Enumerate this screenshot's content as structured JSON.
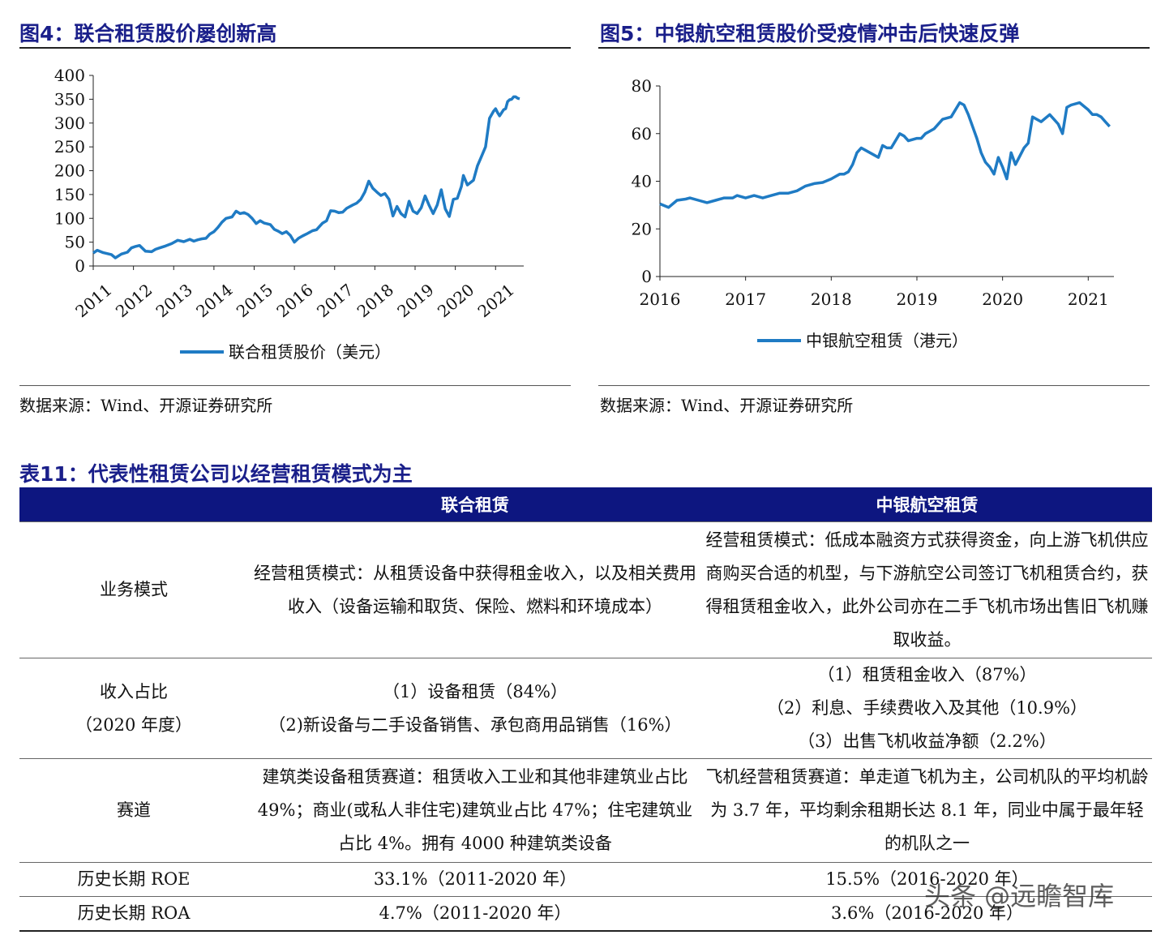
{
  "fig4": {
    "title": "图4：联合租赁股价屡创新高",
    "source": "数据来源：Wind、开源证券研究所",
    "chart_data": {
      "type": "line",
      "title": "",
      "legend": "联合租赁股价（美元）",
      "legend_position": "bottom",
      "x_labels": [
        "2011",
        "2012",
        "2013",
        "2014",
        "2015",
        "2016",
        "2017",
        "2018",
        "2019",
        "2020",
        "2021"
      ],
      "y_ticks": [
        0,
        50,
        100,
        150,
        200,
        250,
        300,
        350,
        400
      ],
      "ylim": [
        0,
        400
      ],
      "xlim": [
        2011.0,
        2021.7
      ],
      "color": "#1f7bc4",
      "series": [
        {
          "x": [
            2011.0,
            2011.1,
            2011.25,
            2011.45,
            2011.55,
            2011.7,
            2011.85,
            2011.95,
            2012.05,
            2012.15,
            2012.3,
            2012.45,
            2012.55,
            2012.65,
            2012.8,
            2012.95,
            2013.1,
            2013.25,
            2013.4,
            2013.5,
            2013.6,
            2013.7,
            2013.8,
            2013.9,
            2014.0,
            2014.1,
            2014.2,
            2014.3,
            2014.45,
            2014.55,
            2014.65,
            2014.75,
            2014.85,
            2014.95,
            2015.05,
            2015.15,
            2015.25,
            2015.4,
            2015.5,
            2015.6,
            2015.7,
            2015.8,
            2015.9,
            2016.0,
            2016.1,
            2016.2,
            2016.3,
            2016.45,
            2016.55,
            2016.7,
            2016.8,
            2016.9,
            2017.0,
            2017.1,
            2017.2,
            2017.3,
            2017.45,
            2017.55,
            2017.65,
            2017.75,
            2017.85,
            2017.95,
            2018.05,
            2018.15,
            2018.25,
            2018.35,
            2018.45,
            2018.55,
            2018.65,
            2018.75,
            2018.85,
            2018.95,
            2019.05,
            2019.15,
            2019.25,
            2019.35,
            2019.45,
            2019.55,
            2019.65,
            2019.75,
            2019.85,
            2019.95,
            2020.05,
            2020.15,
            2020.2,
            2020.3,
            2020.45,
            2020.55,
            2020.65,
            2020.75,
            2020.85,
            2020.95,
            2021.0,
            2021.05,
            2021.1,
            2021.2,
            2021.25,
            2021.3,
            2021.35,
            2021.4,
            2021.45,
            2021.5,
            2021.55,
            2021.6
          ],
          "values": [
            27,
            33,
            28,
            24,
            17,
            25,
            29,
            38,
            41,
            43,
            31,
            30,
            35,
            38,
            42,
            47,
            54,
            51,
            56,
            52,
            55,
            57,
            58,
            67,
            72,
            81,
            92,
            100,
            103,
            115,
            110,
            112,
            108,
            100,
            89,
            95,
            90,
            87,
            77,
            73,
            68,
            72,
            64,
            50,
            58,
            63,
            67,
            74,
            76,
            90,
            95,
            116,
            115,
            112,
            113,
            121,
            128,
            132,
            140,
            155,
            178,
            163,
            155,
            148,
            152,
            140,
            105,
            125,
            110,
            103,
            136,
            115,
            110,
            122,
            147,
            127,
            110,
            128,
            160,
            120,
            104,
            140,
            142,
            167,
            190,
            170,
            180,
            210,
            230,
            250,
            310,
            325,
            330,
            322,
            315,
            328,
            330,
            345,
            349,
            350,
            355,
            355,
            352,
            351
          ]
        }
      ]
    }
  },
  "fig5": {
    "title": "图5：中银航空租赁股价受疫情冲击后快速反弹",
    "source": "数据来源：Wind、开源证券研究所",
    "chart_data": {
      "type": "line",
      "title": "",
      "legend": "中银航空租赁（港元）",
      "legend_position": "bottom",
      "x_labels": [
        "2016",
        "2017",
        "2018",
        "2019",
        "2020",
        "2021"
      ],
      "y_ticks": [
        0,
        20,
        40,
        60,
        80
      ],
      "ylim": [
        0,
        80
      ],
      "xlim": [
        2016.0,
        2021.3
      ],
      "color": "#1f7bc4",
      "series": [
        {
          "x": [
            2016.0,
            2016.1,
            2016.2,
            2016.3,
            2016.35,
            2016.45,
            2016.55,
            2016.65,
            2016.75,
            2016.85,
            2016.9,
            2017.0,
            2017.1,
            2017.2,
            2017.3,
            2017.4,
            2017.5,
            2017.6,
            2017.7,
            2017.8,
            2017.9,
            2018.0,
            2018.05,
            2018.1,
            2018.15,
            2018.2,
            2018.25,
            2018.3,
            2018.35,
            2018.4,
            2018.5,
            2018.55,
            2018.6,
            2018.65,
            2018.7,
            2018.8,
            2018.85,
            2018.9,
            2019.0,
            2019.05,
            2019.1,
            2019.2,
            2019.3,
            2019.4,
            2019.5,
            2019.55,
            2019.6,
            2019.7,
            2019.75,
            2019.8,
            2019.85,
            2019.9,
            2019.95,
            2020.0,
            2020.05,
            2020.1,
            2020.15,
            2020.25,
            2020.3,
            2020.35,
            2020.45,
            2020.55,
            2020.6,
            2020.65,
            2020.7,
            2020.75,
            2020.8,
            2020.9,
            2021.0,
            2021.05,
            2021.1,
            2021.15,
            2021.2,
            2021.25
          ],
          "values": [
            30.5,
            29,
            32,
            32.5,
            33,
            32,
            31,
            32,
            33,
            33,
            34,
            33,
            34,
            33,
            34,
            35,
            35,
            36,
            38,
            39,
            39.5,
            41,
            42,
            43,
            43,
            44,
            47,
            52,
            54,
            53,
            51,
            50,
            55,
            54,
            54,
            60,
            59,
            57,
            58,
            58,
            60,
            62,
            66,
            67,
            73,
            72,
            68,
            58,
            52,
            48,
            46,
            43,
            50,
            46,
            41,
            52,
            47,
            54,
            56,
            67,
            65,
            68,
            66,
            64,
            60,
            71,
            72,
            73,
            70,
            68,
            68,
            67,
            65,
            63
          ]
        }
      ]
    }
  },
  "table": {
    "title": "表11：代表性租赁公司以经营租赁模式为主",
    "headers": [
      "",
      "联合租赁",
      "中银航空租赁"
    ],
    "rows": [
      {
        "label": "业务模式",
        "c1": "经营租赁模式：从租赁设备中获得租金收入，以及相关费用收入（设备运输和取货、保险、燃料和环境成本）",
        "c2": "经营租赁模式：低成本融资方式获得资金，向上游飞机供应商购买合适的机型，与下游航空公司签订飞机租赁合约，获得租赁租金收入，此外公司亦在二手飞机市场出售旧飞机赚取收益。"
      },
      {
        "label_lines": [
          "收入占比",
          "（2020 年度）"
        ],
        "c1_lines": [
          "（1）设备租赁（84%）",
          "（2)新设备与二手设备销售、承包商用品销售（16%）"
        ],
        "c2_lines": [
          "（1）租赁租金收入（87%）",
          "（2）利息、手续费收入及其他（10.9%）",
          "（3）出售飞机收益净额（2.2%）"
        ]
      },
      {
        "label": "赛道",
        "c1": "建筑类设备租赁赛道：租赁收入工业和其他非建筑业占比 49%；商业(或私人非住宅)建筑业占比 47%；住宅建筑业占比 4%。拥有 4000 种建筑类设备",
        "c2": "飞机经营租赁赛道：单走道飞机为主，公司机队的平均机龄为 3.7 年，平均剩余租期长达 8.1 年，同业中属于最年轻的机队之一"
      },
      {
        "label": "历史长期 ROE",
        "c1": "33.1%（2011-2020 年）",
        "c2": "15.5%（2016-2020 年）"
      },
      {
        "label": "历史长期 ROA",
        "c1": "4.7%（2011-2020 年）",
        "c2": "3.6%（2016-2020 年）"
      }
    ]
  },
  "watermark": "头条 @远瞻智库"
}
